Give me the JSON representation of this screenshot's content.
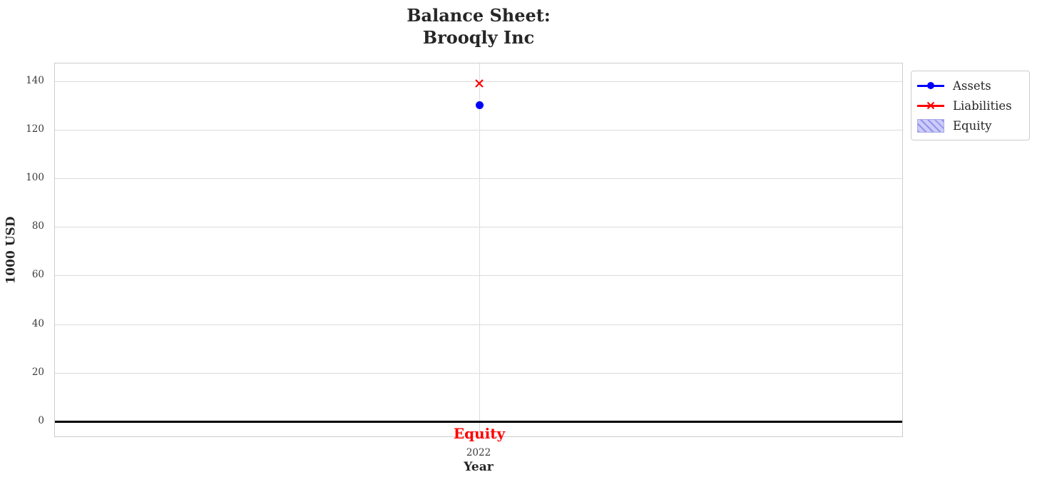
{
  "chart_data": {
    "type": "line",
    "title": "Balance Sheet:\nBrooqly Inc",
    "title_line1": "Balance Sheet:",
    "title_line2": "Brooqly Inc",
    "xlabel": "Year",
    "ylabel": "1000 USD",
    "x": [
      2022
    ],
    "x_tick_labels": [
      "2022"
    ],
    "yticks": [
      0,
      20,
      40,
      60,
      80,
      100,
      120,
      140
    ],
    "ylim": [
      -6.8,
      147.3
    ],
    "grid": true,
    "series": [
      {
        "name": "Assets",
        "type": "line",
        "marker": "circle",
        "color": "#0000ff",
        "values": [
          130
        ]
      },
      {
        "name": "Liabilities",
        "type": "line",
        "marker": "x",
        "color": "#ff0000",
        "values": [
          140
        ]
      },
      {
        "name": "Equity",
        "type": "bar",
        "fill": "#ccccf8",
        "hatch": "///",
        "hatch_color": "#9494ec",
        "values": [
          null
        ]
      }
    ],
    "zero_line": {
      "value": 0,
      "color": "#000000"
    },
    "annotations": [
      {
        "text": "Equity",
        "x": 2022,
        "color": "#ff0000",
        "position": "below zero line"
      }
    ],
    "legend": {
      "position": "upper right outside",
      "entries": [
        "Assets",
        "Liabilities",
        "Equity"
      ]
    }
  },
  "colors": {
    "assets": "#0000ff",
    "liabilities": "#ff0000",
    "equity_fill": "#ccccf8",
    "equity_hatch": "#9494ec",
    "grid": "#dcdcdc",
    "spine": "#cccccc",
    "text": "#262626",
    "zero_line": "#000000",
    "annotation": "#ff0000"
  }
}
